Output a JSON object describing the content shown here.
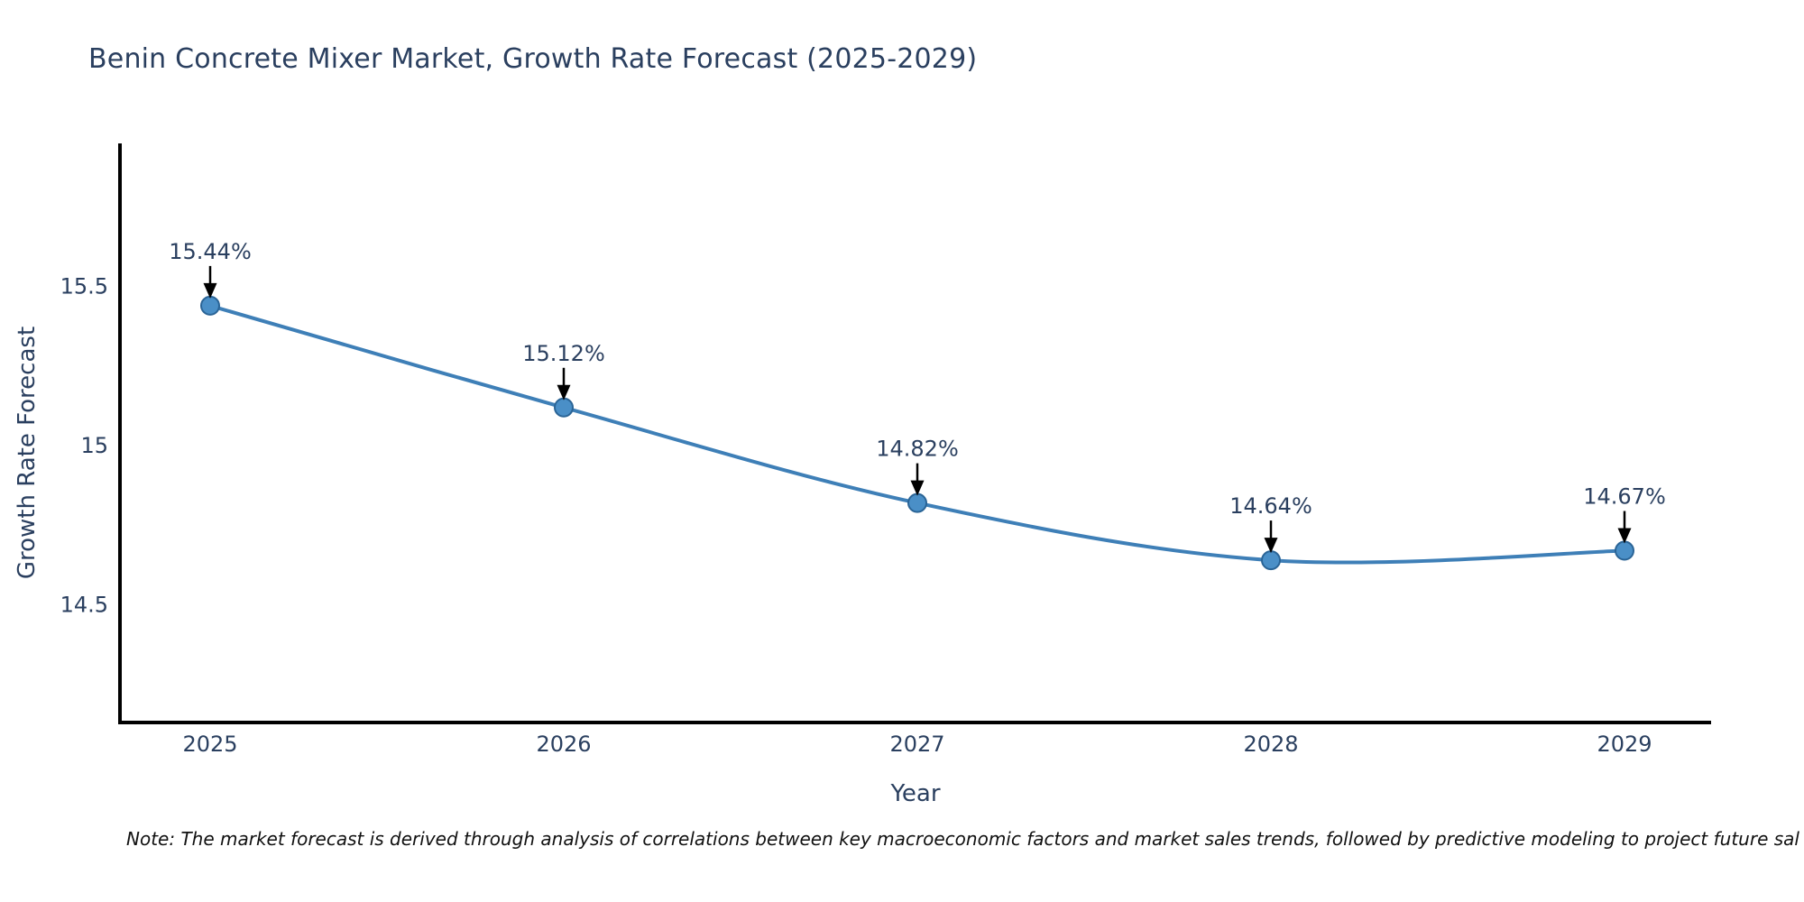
{
  "title": "Benin Concrete Mixer Market, Growth Rate Forecast (2025-2029)",
  "note": "Note: The market forecast is derived through analysis of correlations between key macroeconomic factors and market sales trends, followed by predictive modeling to project future sal",
  "chart_data": {
    "type": "line",
    "title": "Benin Concrete Mixer Market, Growth Rate Forecast (2025-2029)",
    "xlabel": "Year",
    "ylabel": "Growth Rate Forecast",
    "x": [
      "2025",
      "2026",
      "2027",
      "2028",
      "2029"
    ],
    "series": [
      {
        "name": "Growth Rate Forecast",
        "values": [
          15.44,
          15.12,
          14.82,
          14.64,
          14.67
        ]
      }
    ],
    "point_labels": [
      "15.44%",
      "15.12%",
      "14.82%",
      "14.64%",
      "14.67%"
    ],
    "yticks": {
      "values": [
        15.5,
        15.0,
        14.5
      ],
      "labels": [
        "15.5",
        "15",
        "14.5"
      ]
    },
    "ylim": [
      14.13,
      15.95
    ],
    "line_shape": "spline",
    "grid": false,
    "legend": "none",
    "colors": {
      "line": "#3e7fb7",
      "marker_fill": "#4a8fc7",
      "marker_edge": "#2a6496",
      "arrow": "#000000",
      "text": "#2a3f5f",
      "axis": "#000000",
      "note_text": "#111111",
      "background": "#ffffff"
    }
  }
}
